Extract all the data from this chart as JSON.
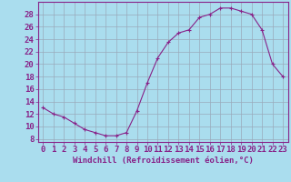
{
  "x": [
    0,
    1,
    2,
    3,
    4,
    5,
    6,
    7,
    8,
    9,
    10,
    11,
    12,
    13,
    14,
    15,
    16,
    17,
    18,
    19,
    20,
    21,
    22,
    23
  ],
  "y": [
    13,
    12,
    11.5,
    10.5,
    9.5,
    9,
    8.5,
    8.5,
    9,
    12.5,
    17,
    21,
    23.5,
    25,
    25.5,
    27.5,
    28,
    29,
    29,
    28.5,
    28,
    25.5,
    20,
    18
  ],
  "line_color": "#882288",
  "marker": "+",
  "bg_color": "#aaddee",
  "grid_color": "#99aabb",
  "xlabel": "Windchill (Refroidissement éolien,°C)",
  "xlabel_fontsize": 6.5,
  "xtick_labels": [
    "0",
    "1",
    "2",
    "3",
    "4",
    "5",
    "6",
    "7",
    "8",
    "9",
    "10",
    "11",
    "12",
    "13",
    "14",
    "15",
    "16",
    "17",
    "18",
    "19",
    "20",
    "21",
    "22",
    "23"
  ],
  "ytick_values": [
    8,
    10,
    12,
    14,
    16,
    18,
    20,
    22,
    24,
    26,
    28
  ],
  "ylim": [
    7.5,
    30
  ],
  "xlim": [
    -0.5,
    23.5
  ],
  "tick_fontsize": 6.5
}
